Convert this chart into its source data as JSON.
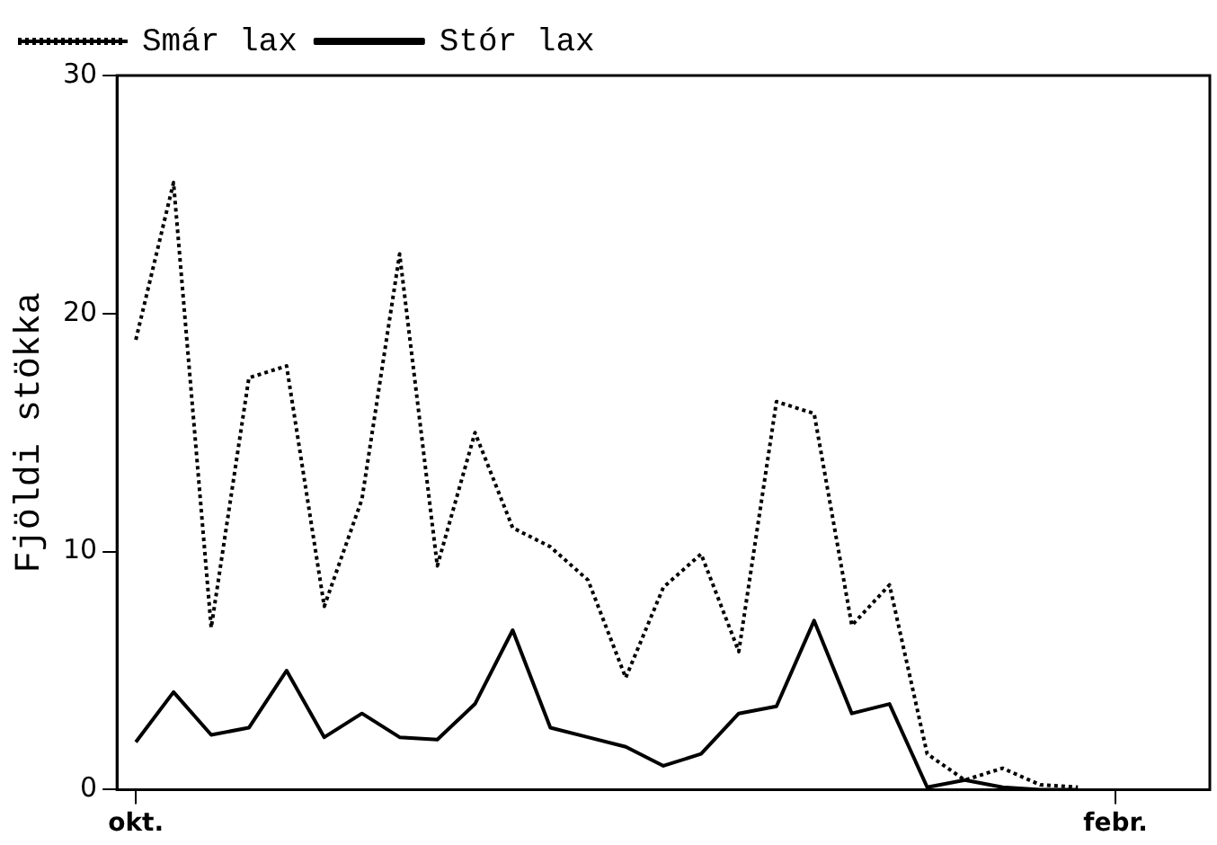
{
  "chart_data": {
    "type": "line",
    "ylabel": "Fjöldi stökka",
    "categories": [
      "okt.",
      null,
      null,
      null,
      null,
      null,
      null,
      null,
      null,
      null,
      null,
      null,
      null,
      null,
      null,
      null,
      null,
      null,
      null,
      null,
      null,
      null,
      null,
      null,
      null,
      null,
      "febr.",
      null,
      null
    ],
    "ylim": [
      0,
      30
    ],
    "yticks": [
      0,
      10,
      20,
      30
    ],
    "grid": false,
    "legend": "top left",
    "marker": "none",
    "series": [
      {
        "name": "Smár lax",
        "color": "#000000",
        "line_style": "dotted",
        "values": [
          18.9,
          25.5,
          6.8,
          17.3,
          17.8,
          7.7,
          12.2,
          22.5,
          9.4,
          15.0,
          11.0,
          10.2,
          8.8,
          4.7,
          8.5,
          9.9,
          5.8,
          16.3,
          15.8,
          6.9,
          8.6,
          1.5,
          0.4,
          0.9,
          0.2,
          0.1,
          null,
          null,
          null
        ]
      },
      {
        "name": "Stór lax",
        "color": "#000000",
        "line_style": "solid",
        "values": [
          2.0,
          4.1,
          2.3,
          2.6,
          5.0,
          2.2,
          3.2,
          2.2,
          2.1,
          3.6,
          6.7,
          2.6,
          2.2,
          1.8,
          1.0,
          1.5,
          3.2,
          3.5,
          7.1,
          3.2,
          3.6,
          0.1,
          0.4,
          0.1,
          0.0,
          0.0,
          null,
          null,
          null
        ]
      }
    ]
  }
}
